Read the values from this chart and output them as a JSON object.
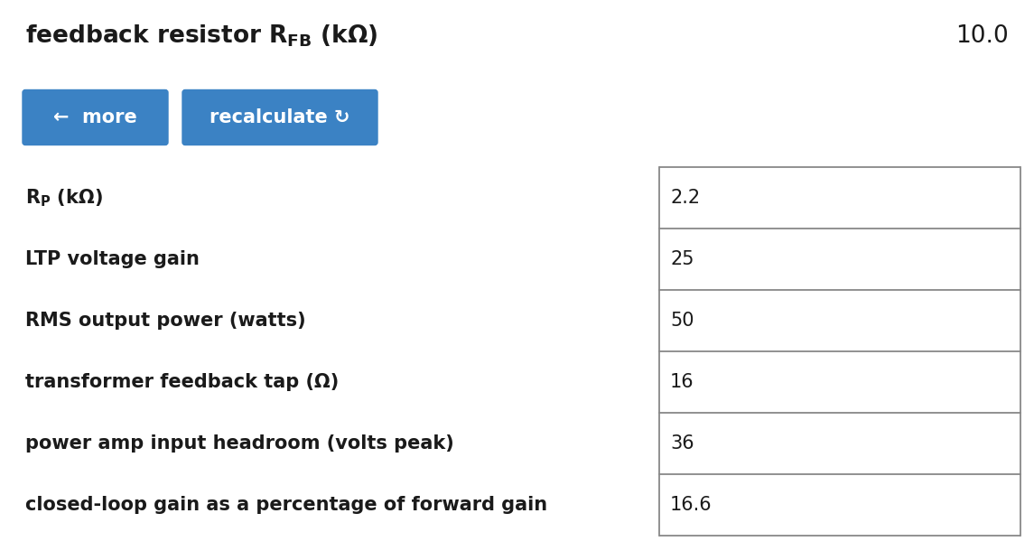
{
  "background_color": "#ffffff",
  "title_value": "10.0",
  "title_fontsize": 19,
  "button1_text": "←  more",
  "button2_text": "recalculate ↻",
  "button_color": "#3b82c4",
  "button_text_color": "#ffffff",
  "button_fontsize": 15,
  "rows": [
    {
      "label": "Rₚ (kΩ)",
      "has_sub": true,
      "value": "2.2"
    },
    {
      "label": "LTP voltage gain",
      "has_sub": false,
      "value": "25"
    },
    {
      "label": "RMS output power (watts)",
      "has_sub": false,
      "value": "50"
    },
    {
      "label": "transformer feedback tap (Ω)",
      "has_sub": false,
      "value": "16"
    },
    {
      "label": "power amp input headroom (volts peak)",
      "has_sub": false,
      "value": "36"
    },
    {
      "label": "closed-loop gain as a percentage of forward gain",
      "has_sub": false,
      "value": "16.6"
    }
  ],
  "row_label_fontsize": 15,
  "row_value_fontsize": 15,
  "text_color": "#1a1a1a",
  "line_color": "#888888"
}
